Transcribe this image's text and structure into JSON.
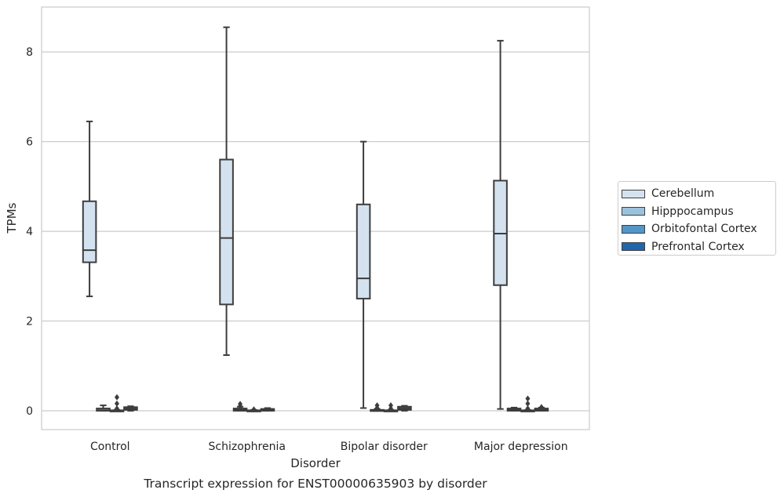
{
  "chart_data": {
    "type": "box",
    "title": "Transcript expression for ENST00000635903 by disorder",
    "xlabel": "Disorder",
    "ylabel": "TPMs",
    "ylim": [
      -0.42,
      9.0
    ],
    "yticks": [
      0,
      2,
      4,
      6,
      8
    ],
    "grid": true,
    "legend_position": "right",
    "categories": [
      "Control",
      "Schizophrenia",
      "Bipolar disorder",
      "Major depression"
    ],
    "series": [
      {
        "name": "Cerebellum",
        "color": "#d4e2f0",
        "boxes": [
          {
            "whisker_low": 2.55,
            "q1": 3.31,
            "median": 3.58,
            "q3": 4.67,
            "whisker_high": 6.45,
            "outliers": []
          },
          {
            "whisker_low": 1.24,
            "q1": 2.37,
            "median": 3.85,
            "q3": 5.6,
            "whisker_high": 8.55,
            "outliers": []
          },
          {
            "whisker_low": 0.06,
            "q1": 2.5,
            "median": 2.95,
            "q3": 4.6,
            "whisker_high": 6.0,
            "outliers": []
          },
          {
            "whisker_low": 0.04,
            "q1": 2.8,
            "median": 3.95,
            "q3": 5.13,
            "whisker_high": 8.25,
            "outliers": []
          }
        ]
      },
      {
        "name": "Hipppocampus",
        "color": "#9ac2dc",
        "boxes": [
          {
            "whisker_low": 0.0,
            "q1": 0.0,
            "median": 0.01,
            "q3": 0.05,
            "whisker_high": 0.12,
            "outliers": []
          },
          {
            "whisker_low": 0.0,
            "q1": 0.0,
            "median": 0.02,
            "q3": 0.05,
            "whisker_high": 0.09,
            "outliers": [
              0.1,
              0.15
            ]
          },
          {
            "whisker_low": 0.0,
            "q1": 0.0,
            "median": 0.0,
            "q3": 0.02,
            "whisker_high": 0.04,
            "outliers": [
              0.06,
              0.12
            ]
          },
          {
            "whisker_low": 0.0,
            "q1": 0.0,
            "median": 0.02,
            "q3": 0.05,
            "whisker_high": 0.07,
            "outliers": []
          }
        ]
      },
      {
        "name": "Orbitofontal Cortex",
        "color": "#5296c8",
        "boxes": [
          {
            "whisker_low": 0.0,
            "q1": 0.0,
            "median": 0.0,
            "q3": 0.01,
            "whisker_high": 0.02,
            "outliers": [
              0.05,
              0.16,
              0.3
            ]
          },
          {
            "whisker_low": 0.0,
            "q1": 0.0,
            "median": 0.0,
            "q3": 0.01,
            "whisker_high": 0.02,
            "outliers": [
              0.03
            ]
          },
          {
            "whisker_low": 0.0,
            "q1": 0.0,
            "median": 0.0,
            "q3": 0.01,
            "whisker_high": 0.02,
            "outliers": [
              0.05,
              0.12
            ]
          },
          {
            "whisker_low": 0.0,
            "q1": 0.0,
            "median": 0.0,
            "q3": 0.01,
            "whisker_high": 0.02,
            "outliers": [
              0.05,
              0.16,
              0.27
            ]
          }
        ]
      },
      {
        "name": "Prefrontal Cortex",
        "color": "#2066ac",
        "boxes": [
          {
            "whisker_low": 0.0,
            "q1": 0.02,
            "median": 0.05,
            "q3": 0.08,
            "whisker_high": 0.1,
            "outliers": []
          },
          {
            "whisker_low": 0.0,
            "q1": 0.0,
            "median": 0.01,
            "q3": 0.04,
            "whisker_high": 0.06,
            "outliers": []
          },
          {
            "whisker_low": 0.0,
            "q1": 0.02,
            "median": 0.05,
            "q3": 0.09,
            "whisker_high": 0.11,
            "outliers": []
          },
          {
            "whisker_low": 0.0,
            "q1": 0.0,
            "median": 0.02,
            "q3": 0.05,
            "whisker_high": 0.07,
            "outliers": [
              0.08
            ]
          }
        ]
      }
    ]
  }
}
